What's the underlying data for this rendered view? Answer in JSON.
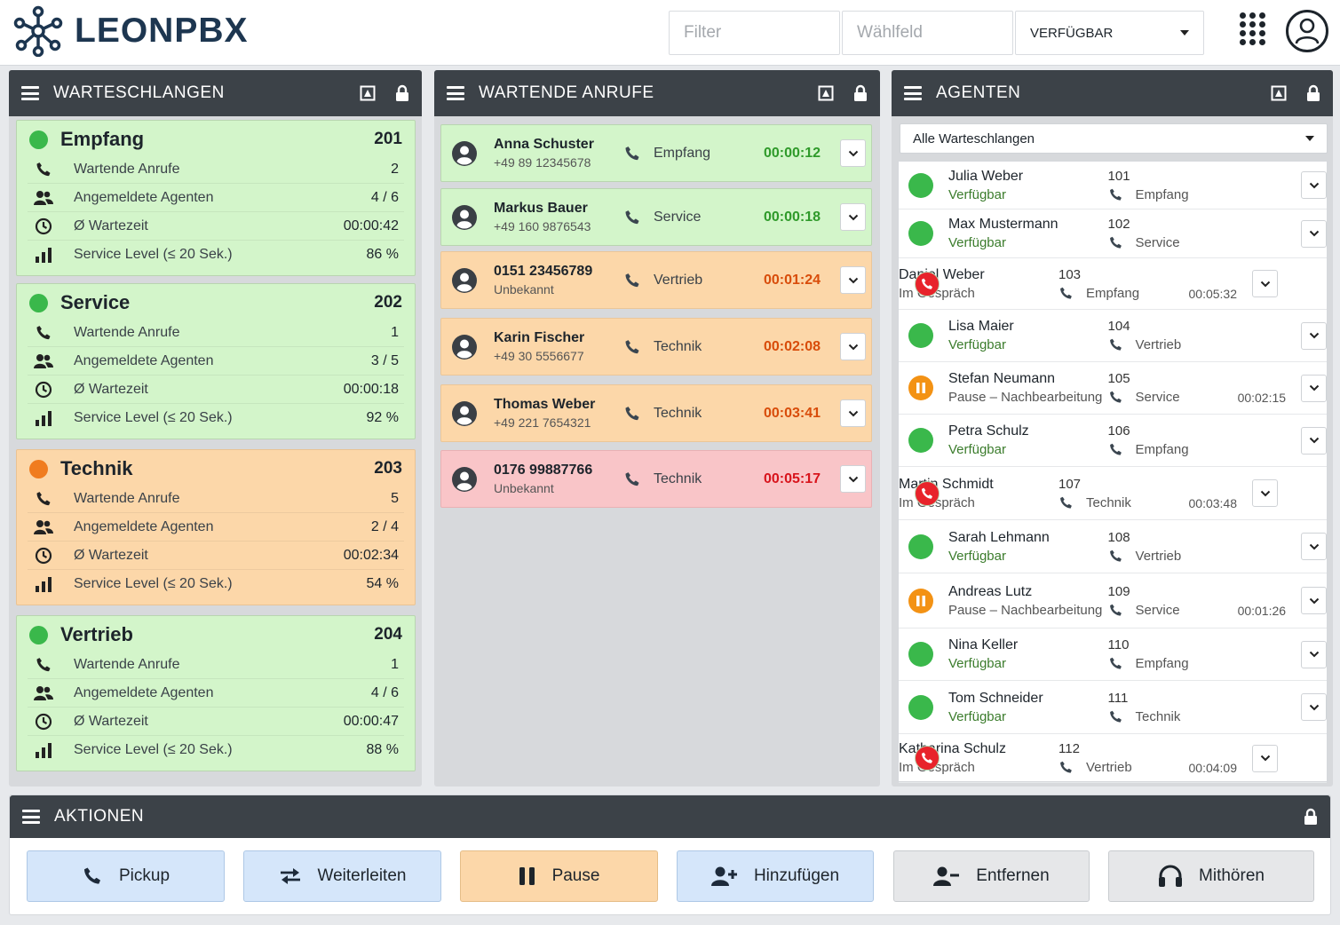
{
  "colors": {
    "green": "#3ab84b",
    "orange": "#f07c1f",
    "red": "#e8232b",
    "header": "#3c4248",
    "brand": "#1d3650"
  },
  "topbar": {
    "logo_text": "LEONPBX",
    "filter_placeholder": "Filter",
    "dial_placeholder": "Wählfeld",
    "status_select": "VERFÜGBAR",
    "apps_icon": "grid-icon",
    "user_icon": "user-avatar-icon"
  },
  "queues_panel": {
    "title": "WARTESCHLANGEN",
    "labels": {
      "waiting": "Wartende Anrufe",
      "agents": "Angemeldete Agenten",
      "avg_wait": "Ø Wartezeit",
      "service_level": "Service Level (≤ 20 Sek.)"
    },
    "queues": [
      {
        "name": "Empfang",
        "number": "201",
        "status": "green",
        "waiting": "2",
        "agents": "4 / 6",
        "avg_wait": "00:00:42",
        "service_level": "86 %"
      },
      {
        "name": "Service",
        "number": "202",
        "status": "green",
        "waiting": "1",
        "agents": "3 / 5",
        "avg_wait": "00:00:18",
        "service_level": "92 %"
      },
      {
        "name": "Technik",
        "number": "203",
        "status": "orange",
        "waiting": "5",
        "agents": "2 / 4",
        "avg_wait": "00:02:34",
        "service_level": "54 %"
      },
      {
        "name": "Vertrieb",
        "number": "204",
        "status": "green",
        "waiting": "1",
        "agents": "4 / 6",
        "avg_wait": "00:00:47",
        "service_level": "88 %"
      }
    ]
  },
  "calls_panel": {
    "title": "WARTENDE ANRUFE",
    "calls": [
      {
        "caller": "Anna Schuster",
        "number": "+49 89 12345678",
        "queue": "Empfang",
        "time": "00:00:12",
        "state": "green"
      },
      {
        "caller": "Markus Bauer",
        "number": "+49 160 9876543",
        "queue": "Service",
        "time": "00:00:18",
        "state": "green"
      },
      {
        "caller": "0151 23456789",
        "number": "Unbekannt",
        "queue": "Vertrieb",
        "time": "00:01:24",
        "state": "orange"
      },
      {
        "caller": "Karin Fischer",
        "number": "+49 30 5556677",
        "queue": "Technik",
        "time": "00:02:08",
        "state": "orange"
      },
      {
        "caller": "Thomas Weber",
        "number": "+49 221 7654321",
        "queue": "Technik",
        "time": "00:03:41",
        "state": "orange"
      },
      {
        "caller": "0176 99887766",
        "number": "Unbekannt",
        "queue": "Technik",
        "time": "00:05:17",
        "state": "red"
      }
    ]
  },
  "agents_panel": {
    "title": "AGENTEN",
    "filter": "Alle Warteschlangen",
    "agents": [
      {
        "name": "Julia Weber",
        "status": "Verfügbar",
        "state": "ok",
        "ext": "101",
        "queue": "Empfang",
        "duration": ""
      },
      {
        "name": "Max Mustermann",
        "status": "Verfügbar",
        "state": "ok",
        "ext": "102",
        "queue": "Service",
        "duration": ""
      },
      {
        "name": "Daniel Weber",
        "status": "Im Gespräch",
        "state": "call",
        "ext": "103",
        "queue": "Empfang",
        "duration": "00:05:32"
      },
      {
        "name": "Lisa Maier",
        "status": "Verfügbar",
        "state": "ok",
        "ext": "104",
        "queue": "Vertrieb",
        "duration": ""
      },
      {
        "name": "Stefan Neumann",
        "status": "Pause – Nachbearbeitung",
        "state": "pause",
        "ext": "105",
        "queue": "Service",
        "duration": "00:02:15"
      },
      {
        "name": "Petra Schulz",
        "status": "Verfügbar",
        "state": "ok",
        "ext": "106",
        "queue": "Empfang",
        "duration": ""
      },
      {
        "name": "Martin Schmidt",
        "status": "Im Gespräch",
        "state": "call",
        "ext": "107",
        "queue": "Technik",
        "duration": "00:03:48"
      },
      {
        "name": "Sarah Lehmann",
        "status": "Verfügbar",
        "state": "ok",
        "ext": "108",
        "queue": "Vertrieb",
        "duration": ""
      },
      {
        "name": "Andreas Lutz",
        "status": "Pause – Nachbearbeitung",
        "state": "pause",
        "ext": "109",
        "queue": "Service",
        "duration": "00:01:26"
      },
      {
        "name": "Nina Keller",
        "status": "Verfügbar",
        "state": "ok",
        "ext": "110",
        "queue": "Empfang",
        "duration": ""
      },
      {
        "name": "Tom Schneider",
        "status": "Verfügbar",
        "state": "ok",
        "ext": "111",
        "queue": "Technik",
        "duration": ""
      },
      {
        "name": "Katharina Schulz",
        "status": "Im Gespräch",
        "state": "call",
        "ext": "112",
        "queue": "Vertrieb",
        "duration": "00:04:09"
      }
    ]
  },
  "actions_panel": {
    "title": "AKTIONEN",
    "buttons": {
      "pickup": "Pickup",
      "forward": "Weiterleiten",
      "pause": "Pause",
      "add": "Hinzufügen",
      "remove": "Entfernen",
      "listen": "Mithören"
    }
  }
}
